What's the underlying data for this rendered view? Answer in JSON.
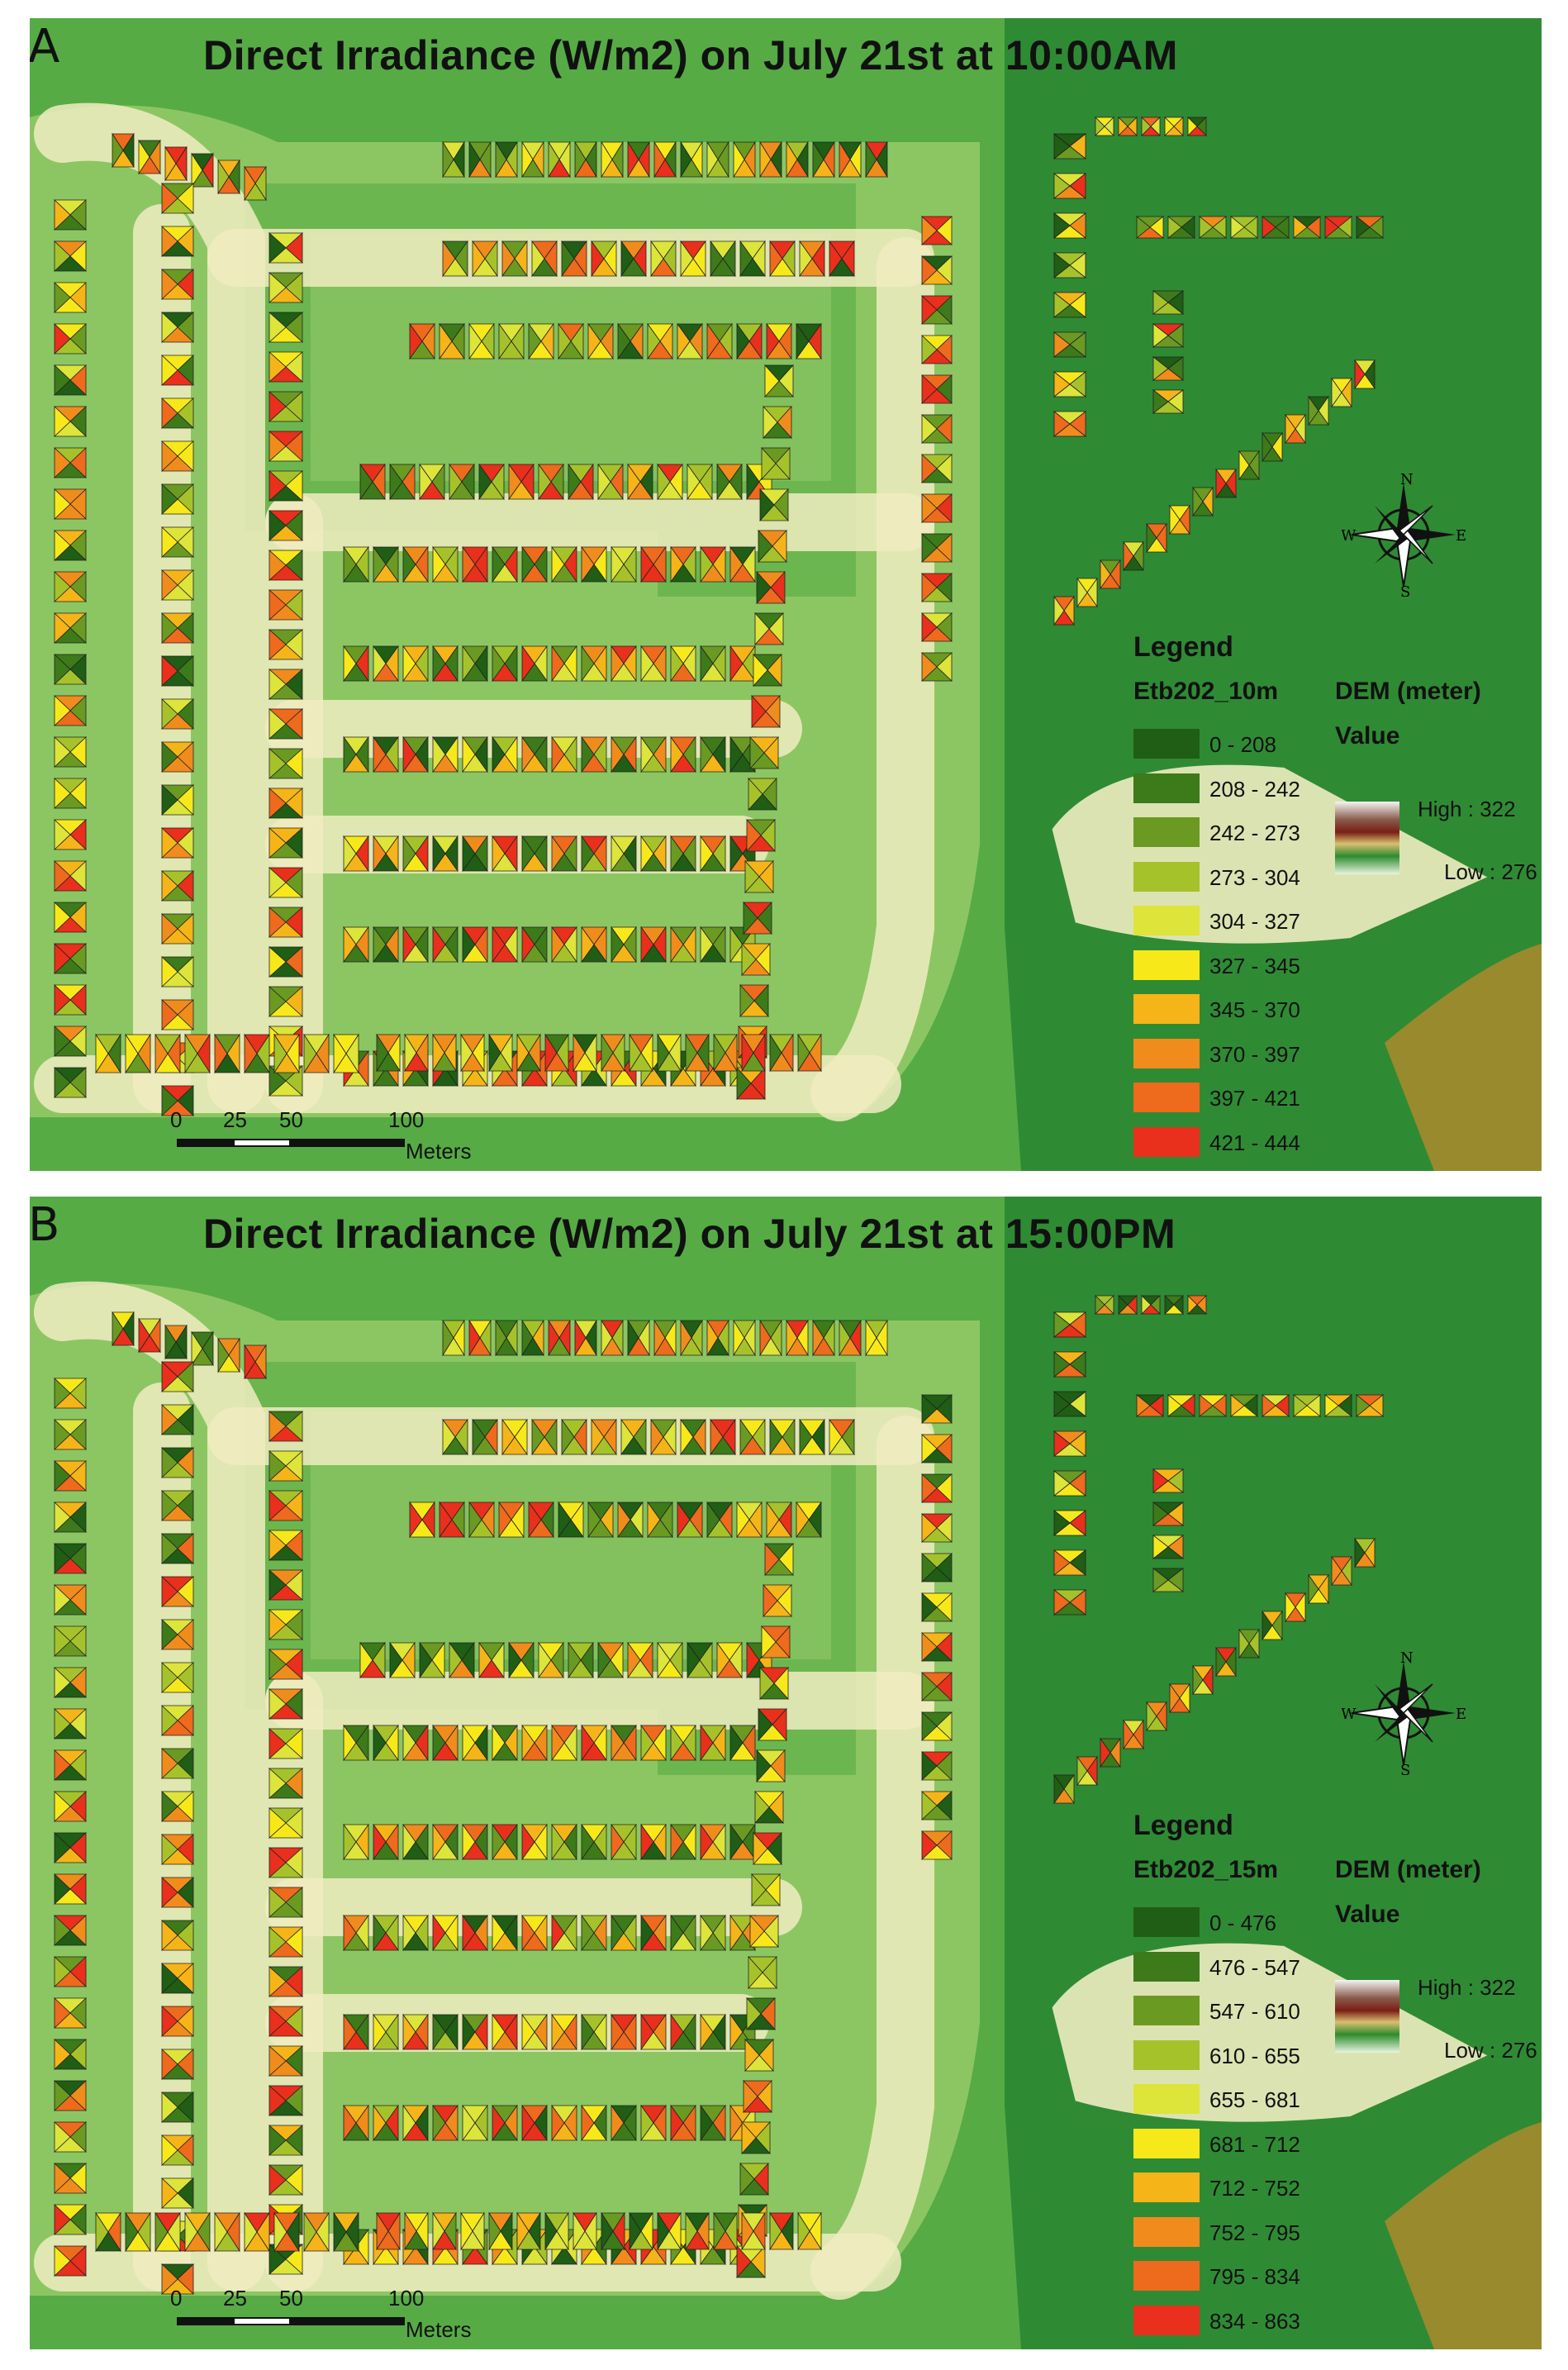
{
  "panels": [
    {
      "letter": "A",
      "title": "Direct Irradiance (W/m2) on July 21st at 10:00AM",
      "legend": {
        "heading": "Legend",
        "layer": "Etb202_10m",
        "dem_title": "DEM (meter)",
        "dem_value": "Value",
        "dem_high": "High : 322",
        "dem_low": "Low : 276",
        "classes": [
          {
            "label": "0 - 208",
            "color": "#1f5e14"
          },
          {
            "label": "208 - 242",
            "color": "#3d7a1a"
          },
          {
            "label": "242 - 273",
            "color": "#6a9a22"
          },
          {
            "label": "273 - 304",
            "color": "#a6c22a"
          },
          {
            "label": "304 - 327",
            "color": "#dde43a"
          },
          {
            "label": "327 - 345",
            "color": "#f7e81a"
          },
          {
            "label": "345 - 370",
            "color": "#f5b418"
          },
          {
            "label": "370 - 397",
            "color": "#f08c1c"
          },
          {
            "label": "397 - 421",
            "color": "#ee6a1c"
          },
          {
            "label": "421 - 444",
            "color": "#e8301c"
          }
        ]
      },
      "scale": {
        "ticks": [
          "0",
          "25",
          "50",
          "100"
        ],
        "units": "Meters"
      },
      "compass": {
        "n": "N",
        "s": "S",
        "e": "E",
        "w": "W"
      }
    },
    {
      "letter": "B",
      "title": "Direct Irradiance (W/m2) on July 21st at 15:00PM",
      "legend": {
        "heading": "Legend",
        "layer": "Etb202_15m",
        "dem_title": "DEM (meter)",
        "dem_value": "Value",
        "dem_high": "High : 322",
        "dem_low": "Low : 276",
        "classes": [
          {
            "label": "0 - 476",
            "color": "#1f5e14"
          },
          {
            "label": "476 - 547",
            "color": "#3d7a1a"
          },
          {
            "label": "547 - 610",
            "color": "#6a9a22"
          },
          {
            "label": "610 - 655",
            "color": "#a6c22a"
          },
          {
            "label": "655 - 681",
            "color": "#dde43a"
          },
          {
            "label": "681 - 712",
            "color": "#f7e81a"
          },
          {
            "label": "712 - 752",
            "color": "#f5b418"
          },
          {
            "label": "752 - 795",
            "color": "#f08c1c"
          },
          {
            "label": "795 - 834",
            "color": "#ee6a1c"
          },
          {
            "label": "834 - 863",
            "color": "#e8301c"
          }
        ]
      },
      "scale": {
        "ticks": [
          "0",
          "25",
          "50",
          "100"
        ],
        "units": "Meters"
      },
      "compass": {
        "n": "N",
        "s": "S",
        "e": "E",
        "w": "W"
      }
    }
  ],
  "colors": {
    "dem_dark": "#2f8a34",
    "dem_mid": "#56ab45",
    "dem_light": "#8cc663",
    "road": "#f0ecc0",
    "orange_hill": "#e08a2a"
  }
}
